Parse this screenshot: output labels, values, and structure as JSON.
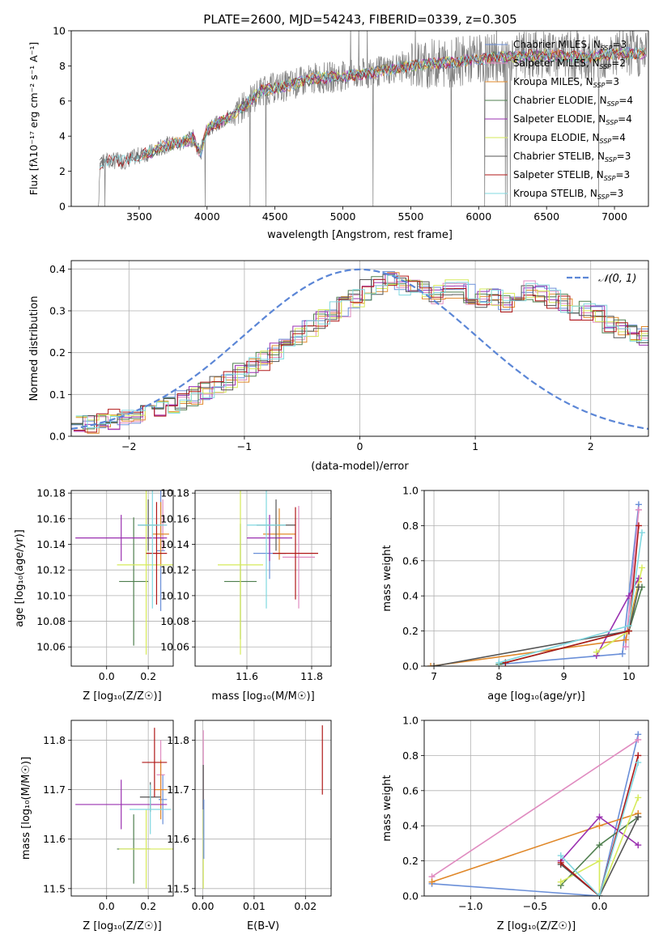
{
  "figure_title": "PLATE=2600, MJD=54243, FIBERID=0339, z=0.305",
  "colors": {
    "Chabrier MILES": "#6a8fd8",
    "Salpeter MILES": "#e08bc0",
    "Kroupa MILES": "#e0882a",
    "Chabrier ELODIE": "#4f7f4f",
    "Salpeter ELODIE": "#9a30b0",
    "Kroupa ELODIE": "#d6ea5a",
    "Chabrier STELIB": "#555555",
    "Salpeter STELIB": "#b01818",
    "Kroupa STELIB": "#80d8e0",
    "data": "#7f7f7f",
    "gaussian": "#5b86d6"
  },
  "chart_data": [
    {
      "id": "spectrum",
      "type": "line",
      "xlabel": "wavelength [Angstrom, rest frame]",
      "ylabel": "Flux [f_λ 10^-17 erg cm^-2 s^-1 A^-1]",
      "xlim": [
        3000,
        7250
      ],
      "ylim": [
        0,
        10
      ],
      "xticks": [
        3500,
        4000,
        4500,
        5000,
        5500,
        6000,
        6500,
        7000
      ],
      "yticks": [
        0,
        2,
        4,
        6,
        8,
        10
      ],
      "grid": false,
      "legend_position": "right",
      "legend": [
        {
          "name": "Chabrier MILES",
          "nssp": 3
        },
        {
          "name": "Salpeter MILES",
          "nssp": 2
        },
        {
          "name": "Kroupa MILES",
          "nssp": 3
        },
        {
          "name": "Chabrier ELODIE",
          "nssp": 4
        },
        {
          "name": "Salpeter ELODIE",
          "nssp": 4
        },
        {
          "name": "Kroupa ELODIE",
          "nssp": 4
        },
        {
          "name": "Chabrier STELIB",
          "nssp": 3
        },
        {
          "name": "Salpeter STELIB",
          "nssp": 3
        },
        {
          "name": "Kroupa STELIB",
          "nssp": 3
        }
      ],
      "continuum": [
        [
          3200,
          0.0
        ],
        [
          3210,
          2.4
        ],
        [
          3260,
          2.6
        ],
        [
          3400,
          2.6
        ],
        [
          3500,
          2.9
        ],
        [
          3600,
          3.1
        ],
        [
          3700,
          3.5
        ],
        [
          3800,
          3.6
        ],
        [
          3900,
          3.9
        ],
        [
          3950,
          3.0
        ],
        [
          4000,
          4.4
        ],
        [
          4200,
          5.2
        ],
        [
          4400,
          6.6
        ],
        [
          4600,
          6.9
        ],
        [
          4800,
          7.3
        ],
        [
          5000,
          7.4
        ],
        [
          5200,
          7.6
        ],
        [
          5400,
          7.9
        ],
        [
          5600,
          8.1
        ],
        [
          5800,
          8.2
        ],
        [
          6000,
          8.4
        ],
        [
          6200,
          8.5
        ],
        [
          6400,
          8.6
        ],
        [
          6600,
          8.6
        ],
        [
          6800,
          8.5
        ],
        [
          7000,
          8.7
        ],
        [
          7250,
          8.7
        ]
      ]
    },
    {
      "id": "residuals",
      "type": "line",
      "xlabel": "(data-model)/error",
      "ylabel": "Normed distribution",
      "xlim": [
        -2.5,
        2.5
      ],
      "ylim": [
        0,
        0.42
      ],
      "xticks": [
        -2,
        -1,
        0,
        1,
        2
      ],
      "yticks": [
        0.0,
        0.1,
        0.2,
        0.3,
        0.4
      ],
      "grid": true,
      "legend_position": "top-right",
      "legend_label": "N(0,1)",
      "bin_width": 0.1,
      "hist_envelope": [
        0.03,
        0.03,
        0.035,
        0.04,
        0.045,
        0.055,
        0.06,
        0.065,
        0.075,
        0.085,
        0.095,
        0.105,
        0.12,
        0.135,
        0.15,
        0.165,
        0.18,
        0.2,
        0.22,
        0.24,
        0.26,
        0.28,
        0.3,
        0.31,
        0.33,
        0.35,
        0.36,
        0.37,
        0.36,
        0.35,
        0.35,
        0.34,
        0.35,
        0.35,
        0.34,
        0.33,
        0.33,
        0.32,
        0.34,
        0.35,
        0.34,
        0.33,
        0.32,
        0.3,
        0.3,
        0.29,
        0.27,
        0.26,
        0.25,
        0.24,
        0.22,
        0.2,
        0.18,
        0.17,
        0.15,
        0.14,
        0.13,
        0.12,
        0.11,
        0.1,
        0.09,
        0.085,
        0.08,
        0.075,
        0.07,
        0.065,
        0.06,
        0.055,
        0.05,
        0.05
      ]
    },
    {
      "id": "age-vs-Z",
      "type": "scatter",
      "xlabel": "Z [log10(Z/Z☉)]",
      "ylabel": "age [log10(age/yr)]",
      "xlim": [
        -0.17,
        0.32
      ],
      "ylim": [
        10.045,
        10.182
      ],
      "xticks": [
        0.0,
        0.2
      ],
      "yticks": [
        10.06,
        10.08,
        10.1,
        10.12,
        10.14,
        10.16,
        10.18
      ],
      "grid": true,
      "points": [
        {
          "model": "Chabrier MILES",
          "x": 0.26,
          "y": 10.135,
          "xerr": 0.02,
          "yerr": 0.047
        },
        {
          "model": "Salpeter MILES",
          "x": 0.27,
          "y": 10.155,
          "xerr": 0.02,
          "yerr": 0.02
        },
        {
          "model": "Kroupa MILES",
          "x": 0.26,
          "y": 10.148,
          "xerr": 0.04,
          "yerr": 0.025
        },
        {
          "model": "Chabrier ELODIE",
          "x": 0.13,
          "y": 10.111,
          "xerr": 0.07,
          "yerr": 0.05
        },
        {
          "model": "Salpeter ELODIE",
          "x": 0.07,
          "y": 10.145,
          "xerr": 0.22,
          "yerr": 0.018
        },
        {
          "model": "Kroupa ELODIE",
          "x": 0.19,
          "y": 10.124,
          "xerr": 0.14,
          "yerr": 0.07
        },
        {
          "model": "Chabrier STELIB",
          "x": 0.2,
          "y": 10.155,
          "xerr": 0.05,
          "yerr": 0.02
        },
        {
          "model": "Salpeter STELIB",
          "x": 0.24,
          "y": 10.133,
          "xerr": 0.05,
          "yerr": 0.04
        },
        {
          "model": "Kroupa STELIB",
          "x": 0.22,
          "y": 10.155,
          "xerr": 0.07,
          "yerr": 0.065
        }
      ]
    },
    {
      "id": "age-vs-mass",
      "type": "scatter",
      "xlabel": "mass [log10(M/M☉)]",
      "ylabel": "",
      "xlim": [
        11.44,
        11.86
      ],
      "ylim": [
        10.045,
        10.182
      ],
      "xticks": [
        11.6,
        11.8
      ],
      "yticks": [
        10.06,
        10.08,
        10.1,
        10.12,
        10.14,
        10.16,
        10.18
      ],
      "grid": true,
      "points": [
        {
          "model": "Chabrier MILES",
          "x": 11.67,
          "y": 10.133,
          "xerr": 0.05,
          "yerr": 0.02
        },
        {
          "model": "Salpeter MILES",
          "x": 11.76,
          "y": 10.13,
          "xerr": 0.05,
          "yerr": 0.04
        },
        {
          "model": "Kroupa MILES",
          "x": 11.7,
          "y": 10.148,
          "xerr": 0.05,
          "yerr": 0.02
        },
        {
          "model": "Chabrier ELODIE",
          "x": 11.58,
          "y": 10.111,
          "xerr": 0.05,
          "yerr": 0.045
        },
        {
          "model": "Salpeter ELODIE",
          "x": 11.67,
          "y": 10.145,
          "xerr": 0.07,
          "yerr": 0.018
        },
        {
          "model": "Kroupa ELODIE",
          "x": 11.58,
          "y": 10.124,
          "xerr": 0.07,
          "yerr": 0.07
        },
        {
          "model": "Chabrier STELIB",
          "x": 11.69,
          "y": 10.155,
          "xerr": 0.06,
          "yerr": 0.02
        },
        {
          "model": "Salpeter STELIB",
          "x": 11.75,
          "y": 10.133,
          "xerr": 0.07,
          "yerr": 0.036
        },
        {
          "model": "Kroupa STELIB",
          "x": 11.66,
          "y": 10.155,
          "xerr": 0.06,
          "yerr": 0.065
        }
      ]
    },
    {
      "id": "weight-vs-age",
      "type": "line",
      "xlabel": "age [log10(age/yr)]",
      "ylabel": "mass weight",
      "xlim": [
        6.85,
        10.3
      ],
      "ylim": [
        0,
        1.0
      ],
      "xticks": [
        7,
        8,
        9,
        10
      ],
      "yticks": [
        0.0,
        0.2,
        0.4,
        0.6,
        0.8,
        1.0
      ],
      "grid": true,
      "series": [
        {
          "model": "Chabrier MILES",
          "x": [
            8.0,
            9.9,
            10.15
          ],
          "y": [
            0.01,
            0.07,
            0.92
          ]
        },
        {
          "model": "Salpeter MILES",
          "x": [
            9.95,
            10.15
          ],
          "y": [
            0.11,
            0.89
          ]
        },
        {
          "model": "Kroupa MILES",
          "x": [
            6.95,
            9.95,
            10.15
          ],
          "y": [
            0.0,
            0.15,
            0.48
          ]
        },
        {
          "model": "Chabrier ELODIE",
          "x": [
            8.0,
            10.0,
            10.2
          ],
          "y": [
            0.01,
            0.2,
            0.45
          ]
        },
        {
          "model": "Salpeter ELODIE",
          "x": [
            9.5,
            10.0,
            10.15
          ],
          "y": [
            0.06,
            0.4,
            0.5
          ]
        },
        {
          "model": "Kroupa ELODIE",
          "x": [
            9.5,
            10.0,
            10.2
          ],
          "y": [
            0.08,
            0.2,
            0.56
          ]
        },
        {
          "model": "Chabrier STELIB",
          "x": [
            7.0,
            10.0,
            10.15
          ],
          "y": [
            0.0,
            0.2,
            0.45
          ]
        },
        {
          "model": "Salpeter STELIB",
          "x": [
            8.1,
            10.0,
            10.15
          ],
          "y": [
            0.02,
            0.2,
            0.8
          ]
        },
        {
          "model": "Kroupa STELIB",
          "x": [
            8.0,
            10.0,
            10.2
          ],
          "y": [
            0.02,
            0.23,
            0.76
          ]
        }
      ]
    },
    {
      "id": "mass-vs-Z",
      "type": "scatter",
      "xlabel": "Z [log10(Z/Z☉)]",
      "ylabel": "mass [log10(M/M☉)]",
      "xlim": [
        -0.17,
        0.32
      ],
      "ylim": [
        11.485,
        11.84
      ],
      "xticks": [
        0.0,
        0.2
      ],
      "yticks": [
        11.5,
        11.6,
        11.7,
        11.8
      ],
      "grid": true,
      "points": [
        {
          "model": "Chabrier MILES",
          "x": 0.27,
          "y": 11.68,
          "xerr": 0.02,
          "yerr": 0.05
        },
        {
          "model": "Salpeter MILES",
          "x": 0.26,
          "y": 11.73,
          "xerr": 0.02,
          "yerr": 0.07
        },
        {
          "model": "Kroupa MILES",
          "x": 0.26,
          "y": 11.7,
          "xerr": 0.03,
          "yerr": 0.06
        },
        {
          "model": "Chabrier ELODIE",
          "x": 0.13,
          "y": 11.58,
          "xerr": 0.08,
          "yerr": 0.07
        },
        {
          "model": "Salpeter ELODIE",
          "x": 0.07,
          "y": 11.67,
          "xerr": 0.22,
          "yerr": 0.05
        },
        {
          "model": "Kroupa ELODIE",
          "x": 0.19,
          "y": 11.58,
          "xerr": 0.13,
          "yerr": 0.08
        },
        {
          "model": "Chabrier STELIB",
          "x": 0.21,
          "y": 11.685,
          "xerr": 0.05,
          "yerr": 0.03
        },
        {
          "model": "Salpeter STELIB",
          "x": 0.23,
          "y": 11.755,
          "xerr": 0.06,
          "yerr": 0.07
        },
        {
          "model": "Kroupa STELIB",
          "x": 0.21,
          "y": 11.66,
          "xerr": 0.1,
          "yerr": 0.05
        }
      ]
    },
    {
      "id": "mass-vs-EBV",
      "type": "scatter",
      "xlabel": "E(B-V)",
      "ylabel": "",
      "xlim": [
        -0.0015,
        0.025
      ],
      "ylim": [
        11.485,
        11.84
      ],
      "xticks": [
        0.0,
        0.01,
        0.02
      ],
      "xtick_labels": [
        "0.00",
        "0.01",
        "0.02"
      ],
      "yticks": [
        11.5,
        11.6,
        11.7,
        11.8
      ],
      "grid": true,
      "points": [
        {
          "model": "Salpeter MILES",
          "x": 0.0001,
          "y": 11.75,
          "xerr": 0.0,
          "yerr": 0.07
        },
        {
          "model": "Chabrier STELIB",
          "x": 0.0001,
          "y": 11.68,
          "xerr": 0.0,
          "yerr": 0.07
        },
        {
          "model": "Kroupa ELODIE",
          "x": 0.0001,
          "y": 11.58,
          "xerr": 0.0,
          "yerr": 0.08
        },
        {
          "model": "Chabrier MILES",
          "x": 0.0002,
          "y": 11.62,
          "xerr": 0.0,
          "yerr": 0.06
        },
        {
          "model": "Salpeter STELIB",
          "x": 0.0233,
          "y": 11.76,
          "xerr": 0.0,
          "yerr": 0.07
        }
      ]
    },
    {
      "id": "weight-vs-Z",
      "type": "line",
      "xlabel": "Z [log10(Z/Z☉)]",
      "ylabel": "mass weight",
      "xlim": [
        -1.36,
        0.38
      ],
      "ylim": [
        0,
        1.0
      ],
      "xticks": [
        -1.0,
        -0.5,
        0.0
      ],
      "xtick_labels": [
        "−1.0",
        "−0.5",
        "0.0"
      ],
      "yticks": [
        0.0,
        0.2,
        0.4,
        0.6,
        0.8,
        1.0
      ],
      "grid": true,
      "series": [
        {
          "model": "Chabrier MILES",
          "x": [
            -1.3,
            0.0,
            0.3
          ],
          "y": [
            0.07,
            0.0,
            0.92
          ]
        },
        {
          "model": "Salpeter MILES",
          "x": [
            -1.3,
            0.3
          ],
          "y": [
            0.11,
            0.89
          ]
        },
        {
          "model": "Kroupa MILES",
          "x": [
            -1.3,
            0.0,
            0.3
          ],
          "y": [
            0.08,
            0.4,
            0.47
          ]
        },
        {
          "model": "Chabrier ELODIE",
          "x": [
            -0.3,
            0.0,
            0.3
          ],
          "y": [
            0.06,
            0.29,
            0.45
          ]
        },
        {
          "model": "Salpeter ELODIE",
          "x": [
            -0.3,
            0.0,
            0.3
          ],
          "y": [
            0.2,
            0.45,
            0.29
          ]
        },
        {
          "model": "Kroupa ELODIE",
          "x": [
            -0.3,
            0.0,
            0.0,
            0.3
          ],
          "y": [
            0.08,
            0.2,
            0.0,
            0.56
          ]
        },
        {
          "model": "Chabrier STELIB",
          "x": [
            -0.3,
            0.0,
            0.3
          ],
          "y": [
            0.18,
            0.0,
            0.45
          ]
        },
        {
          "model": "Salpeter STELIB",
          "x": [
            -0.3,
            0.0,
            0.3
          ],
          "y": [
            0.19,
            0.0,
            0.8
          ]
        },
        {
          "model": "Kroupa STELIB",
          "x": [
            -0.3,
            0.0,
            0.3
          ],
          "y": [
            0.23,
            0.0,
            0.76
          ]
        }
      ]
    }
  ]
}
